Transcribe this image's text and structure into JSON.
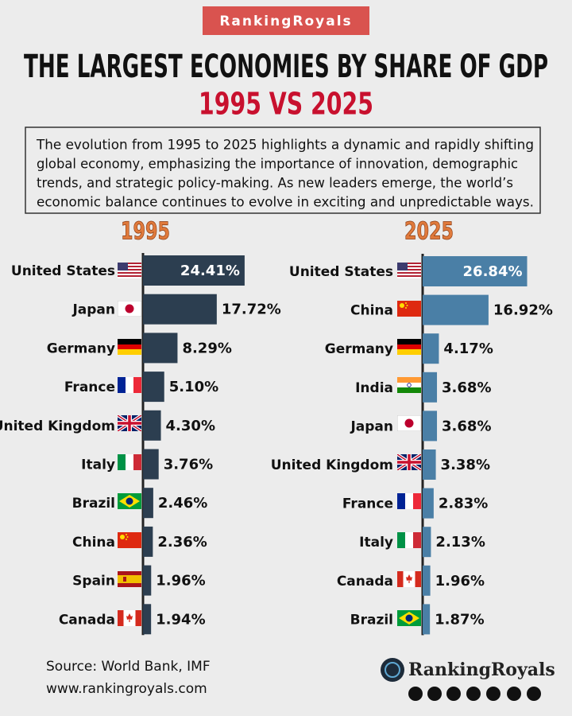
{
  "brand": "RankingRoyals",
  "title": "THE LARGEST ECONOMIES BY SHARE OF GDP",
  "subtitle": "1995 VS 2025",
  "description": [
    "The evolution from 1995 to 2025 highlights a dynamic and rapidly shifting",
    "global economy, emphasizing the importance of innovation, demographic",
    "trends, and strategic policy-making. As new leaders emerge, the world’s",
    "economic balance continues to evolve in exciting and unpredictable ways."
  ],
  "source": "Source: World Bank, IMF",
  "website": "www.rankingroyals.com",
  "logo_text": "RankingRoyals",
  "chart_data": [
    {
      "type": "bar",
      "orientation": "horizontal",
      "title": "1995",
      "color": "#2c3e50",
      "categories": [
        "United States",
        "Japan",
        "Germany",
        "France",
        "United Kingdom",
        "Italy",
        "Brazil",
        "China",
        "Spain",
        "Canada"
      ],
      "values": [
        24.41,
        17.72,
        8.29,
        5.1,
        4.3,
        3.76,
        2.46,
        2.36,
        1.96,
        1.94
      ],
      "value_labels": [
        "24.41%",
        "17.72%",
        "8.29%",
        "5.10%",
        "4.30%",
        "3.76%",
        "2.46%",
        "2.36%",
        "1.96%",
        "1.94%"
      ]
    },
    {
      "type": "bar",
      "orientation": "horizontal",
      "title": "2025",
      "color": "#4a7fa6",
      "categories": [
        "United States",
        "China",
        "Germany",
        "India",
        "Japan",
        "United Kingdom",
        "France",
        "Italy",
        "Canada",
        "Brazil"
      ],
      "values": [
        26.84,
        16.92,
        4.17,
        3.68,
        3.68,
        3.38,
        2.83,
        2.13,
        1.96,
        1.87
      ],
      "value_labels": [
        "26.84%",
        "16.92%",
        "4.17%",
        "3.68%",
        "3.68%",
        "3.38%",
        "2.83%",
        "2.13%",
        "1.96%",
        "1.87%"
      ]
    }
  ]
}
